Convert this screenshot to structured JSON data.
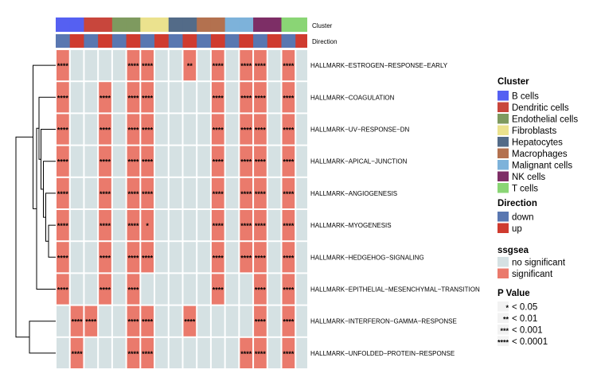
{
  "chart_data": {
    "type": "heatmap",
    "title": "",
    "annotation_tracks": [
      {
        "name": "Cluster",
        "key": "cluster"
      },
      {
        "name": "Direction",
        "key": "direction"
      }
    ],
    "columns": [
      {
        "cluster": "B cells",
        "direction": "down"
      },
      {
        "cluster": "B cells",
        "direction": "up"
      },
      {
        "cluster": "Dendritic cells",
        "direction": "down"
      },
      {
        "cluster": "Dendritic cells",
        "direction": "up"
      },
      {
        "cluster": "Endothelial cells",
        "direction": "down"
      },
      {
        "cluster": "Endothelial cells",
        "direction": "up"
      },
      {
        "cluster": "Fibroblasts",
        "direction": "down"
      },
      {
        "cluster": "Fibroblasts",
        "direction": "up"
      },
      {
        "cluster": "Hepatocytes",
        "direction": "down"
      },
      {
        "cluster": "Hepatocytes",
        "direction": "up"
      },
      {
        "cluster": "Macrophages",
        "direction": "down"
      },
      {
        "cluster": "Macrophages",
        "direction": "up"
      },
      {
        "cluster": "Malignant cells",
        "direction": "down"
      },
      {
        "cluster": "Malignant cells",
        "direction": "up"
      },
      {
        "cluster": "NK cells",
        "direction": "down"
      },
      {
        "cluster": "NK cells",
        "direction": "up"
      },
      {
        "cluster": "T cells",
        "direction": "down"
      },
      {
        "cluster": "T cells",
        "direction": "up"
      }
    ],
    "rows": [
      "HALLMARK−ESTROGEN−RESPONSE−EARLY",
      "HALLMARK−COAGULATION",
      "HALLMARK−UV−RESPONSE−DN",
      "HALLMARK−APICAL−JUNCTION",
      "HALLMARK−ANGIOGENESIS",
      "HALLMARK−MYOGENESIS",
      "HALLMARK−HEDGEHOG−SIGNALING",
      "HALLMARK−EPITHELIAL−MESENCHYMAL−TRANSITION",
      "HALLMARK−INTERFERON−GAMMA−RESPONSE",
      "HALLMARK−UNFOLDED−PROTEIN−RESPONSE"
    ],
    "values": [
      [
        1,
        0,
        0,
        0,
        0,
        1,
        1,
        0,
        0,
        1,
        0,
        1,
        0,
        1,
        1,
        0,
        1,
        0
      ],
      [
        1,
        0,
        0,
        1,
        0,
        1,
        1,
        0,
        0,
        0,
        0,
        1,
        0,
        1,
        1,
        0,
        1,
        0
      ],
      [
        1,
        0,
        0,
        1,
        0,
        1,
        1,
        0,
        0,
        0,
        0,
        1,
        0,
        1,
        1,
        0,
        1,
        0
      ],
      [
        1,
        0,
        0,
        1,
        0,
        1,
        1,
        0,
        0,
        0,
        0,
        1,
        0,
        1,
        1,
        0,
        1,
        0
      ],
      [
        1,
        0,
        0,
        1,
        0,
        1,
        1,
        0,
        0,
        0,
        0,
        1,
        0,
        1,
        1,
        0,
        1,
        0
      ],
      [
        1,
        0,
        0,
        1,
        0,
        1,
        1,
        0,
        0,
        0,
        0,
        1,
        0,
        1,
        1,
        0,
        1,
        0
      ],
      [
        1,
        0,
        0,
        1,
        0,
        1,
        1,
        0,
        0,
        0,
        0,
        1,
        0,
        1,
        1,
        0,
        1,
        0
      ],
      [
        1,
        0,
        0,
        1,
        0,
        1,
        0,
        0,
        0,
        0,
        0,
        1,
        0,
        0,
        1,
        0,
        1,
        0
      ],
      [
        0,
        1,
        1,
        0,
        0,
        1,
        1,
        0,
        0,
        1,
        0,
        0,
        0,
        0,
        1,
        0,
        1,
        0
      ],
      [
        0,
        1,
        0,
        0,
        0,
        1,
        1,
        0,
        0,
        0,
        0,
        0,
        0,
        1,
        1,
        0,
        1,
        0
      ]
    ],
    "stars": [
      [
        "****",
        "",
        "",
        "",
        "",
        "****",
        "****",
        "",
        "",
        "**",
        "",
        "****",
        "",
        "****",
        "****",
        "",
        "****",
        ""
      ],
      [
        "****",
        "",
        "",
        "****",
        "",
        "****",
        "****",
        "",
        "",
        "",
        "",
        "****",
        "",
        "****",
        "****",
        "",
        "****",
        ""
      ],
      [
        "****",
        "",
        "",
        "****",
        "",
        "****",
        "****",
        "",
        "",
        "",
        "",
        "****",
        "",
        "****",
        "****",
        "",
        "****",
        ""
      ],
      [
        "****",
        "",
        "",
        "****",
        "",
        "****",
        "****",
        "",
        "",
        "",
        "",
        "****",
        "",
        "****",
        "****",
        "",
        "****",
        ""
      ],
      [
        "****",
        "",
        "",
        "****",
        "",
        "****",
        "****",
        "",
        "",
        "",
        "",
        "****",
        "",
        "****",
        "****",
        "",
        "****",
        ""
      ],
      [
        "****",
        "",
        "",
        "****",
        "",
        "****",
        "*",
        "",
        "",
        "",
        "",
        "****",
        "",
        "****",
        "****",
        "",
        "****",
        ""
      ],
      [
        "****",
        "",
        "",
        "****",
        "",
        "****",
        "****",
        "",
        "",
        "",
        "",
        "****",
        "",
        "****",
        "****",
        "",
        "****",
        ""
      ],
      [
        "****",
        "",
        "",
        "****",
        "",
        "****",
        "",
        "",
        "",
        "",
        "",
        "****",
        "",
        "",
        "****",
        "",
        "****",
        ""
      ],
      [
        "",
        "****",
        "****",
        "",
        "",
        "****",
        "****",
        "",
        "",
        "****",
        "",
        "",
        "",
        "",
        "****",
        "",
        "****",
        ""
      ],
      [
        "",
        "****",
        "",
        "",
        "",
        "****",
        "****",
        "",
        "",
        "",
        "",
        "",
        "",
        "****",
        "****",
        "",
        "****",
        ""
      ]
    ],
    "dendrogram": {
      "merges": [
        {
          "a": "r6",
          "b": "r7",
          "height": 0.18
        },
        {
          "a": "r4",
          "b": "n1",
          "height": 0.25
        },
        {
          "a": "r5",
          "b": "n2",
          "height": 0.31
        },
        {
          "a": "r3",
          "b": "n3",
          "height": 0.37
        },
        {
          "a": "r2",
          "b": "n4",
          "height": 0.42
        },
        {
          "a": "r1",
          "b": "n5",
          "height": 0.48
        },
        {
          "a": "r8",
          "b": "n6",
          "height": 0.57
        },
        {
          "a": "r0",
          "b": "n7",
          "height": 0.66
        },
        {
          "a": "r9",
          "b": "r10",
          "height": 0.66
        },
        {
          "a": "n8",
          "b": "n9",
          "height": 1.0
        }
      ]
    },
    "legend": {
      "cluster": {
        "title": "Cluster",
        "items": [
          {
            "label": "B cells",
            "color": "#5560F2"
          },
          {
            "label": "Dendritic cells",
            "color": "#C8463C"
          },
          {
            "label": "Endothelial cells",
            "color": "#7E9A5F"
          },
          {
            "label": "Fibroblasts",
            "color": "#EBE28E"
          },
          {
            "label": "Hepatocytes",
            "color": "#536B88"
          },
          {
            "label": "Macrophages",
            "color": "#B3714F"
          },
          {
            "label": "Malignant cells",
            "color": "#7DB2DA"
          },
          {
            "label": "NK cells",
            "color": "#7D2E66"
          },
          {
            "label": "T cells",
            "color": "#8AD575"
          }
        ]
      },
      "direction": {
        "title": "Direction",
        "items": [
          {
            "label": "down",
            "color": "#5977B1"
          },
          {
            "label": "up",
            "color": "#CF3B2F"
          }
        ]
      },
      "ssgsea": {
        "title": "ssgsea",
        "items": [
          {
            "label": "no significant",
            "color": "#D5E1E3"
          },
          {
            "label": "significant",
            "color": "#EA7A6C"
          }
        ]
      },
      "pvalue": {
        "title": "P Value",
        "items": [
          {
            "stars": "*",
            "label": "< 0.05"
          },
          {
            "stars": "**",
            "label": "< 0.01"
          },
          {
            "stars": "***",
            "label": "< 0.001"
          },
          {
            "stars": "****",
            "label": "< 0.0001"
          }
        ]
      }
    }
  }
}
